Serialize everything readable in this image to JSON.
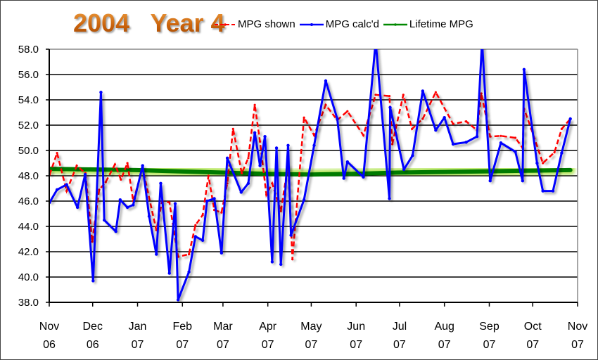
{
  "chart_data": {
    "type": "line",
    "title": "2004   Year 4",
    "xlabel": "",
    "ylabel": "",
    "ylim": [
      38.0,
      58.0
    ],
    "yticks": [
      "38.0",
      "40.0",
      "42.0",
      "44.0",
      "46.0",
      "48.0",
      "50.0",
      "52.0",
      "54.0",
      "56.0",
      "58.0"
    ],
    "x_unit": "days since Nov 1 2006",
    "xlim": [
      0,
      365
    ],
    "xticks": [
      {
        "day": 0,
        "line1": "Nov",
        "line2": "06"
      },
      {
        "day": 30,
        "line1": "Dec",
        "line2": "06"
      },
      {
        "day": 61,
        "line1": "Jan",
        "line2": "07"
      },
      {
        "day": 92,
        "line1": "Feb",
        "line2": "07"
      },
      {
        "day": 120,
        "line1": "Mar",
        "line2": "07"
      },
      {
        "day": 151,
        "line1": "Apr",
        "line2": "07"
      },
      {
        "day": 181,
        "line1": "May",
        "line2": "07"
      },
      {
        "day": 212,
        "line1": "Jun",
        "line2": "07"
      },
      {
        "day": 242,
        "line1": "Jul",
        "line2": "07"
      },
      {
        "day": 273,
        "line1": "Aug",
        "line2": "07"
      },
      {
        "day": 304,
        "line1": "Sep",
        "line2": "07"
      },
      {
        "day": 334,
        "line1": "Oct",
        "line2": "07"
      },
      {
        "day": 365,
        "line1": "Nov",
        "line2": "07"
      }
    ],
    "grid": true,
    "legend_position": "top-right",
    "series": [
      {
        "name": "MPG shown",
        "color": "#ff0000",
        "style": "dashed",
        "x": [
          0.3,
          5.4,
          12,
          19,
          25,
          29.7,
          34.5,
          39,
          45.4,
          49.5,
          54,
          58,
          64.5,
          74,
          78,
          83,
          89,
          96.5,
          101,
          106,
          110,
          114,
          119,
          123,
          127,
          133,
          137.5,
          142,
          145.6,
          150,
          154,
          160,
          165,
          168,
          176,
          183,
          191,
          199,
          206,
          217,
          225.5,
          235,
          237,
          244.6,
          250.6,
          258,
          267,
          279,
          288,
          295.5,
          298.5,
          304.6,
          312,
          322,
          327,
          328,
          333,
          341,
          349,
          354,
          360
        ],
        "y": [
          48.1,
          49.8,
          46.8,
          48.8,
          48.2,
          42.8,
          46.9,
          47.5,
          48.9,
          47.7,
          49.0,
          46.0,
          48.6,
          43.7,
          46.0,
          45.9,
          41.6,
          41.8,
          44.1,
          44.9,
          48.0,
          45.3,
          45.1,
          47.4,
          51.7,
          48.2,
          49.4,
          53.6,
          50.7,
          46.5,
          47.4,
          45.2,
          48.9,
          41.4,
          52.6,
          51.2,
          53.6,
          52.4,
          53.1,
          51.2,
          54.4,
          54.3,
          50.5,
          54.4,
          51.7,
          52.5,
          54.6,
          52.1,
          52.3,
          51.6,
          54.5,
          51.1,
          51.15,
          51.0,
          50.2,
          53.3,
          51.7,
          49.0,
          49.85,
          51.7,
          52.5
        ]
      },
      {
        "name": "MPG calc'd",
        "color": "#0000ff",
        "style": "solid",
        "x": [
          0.3,
          5.4,
          12,
          19.5,
          24.8,
          30.3,
          35.7,
          38,
          46,
          49,
          54,
          58,
          64.5,
          69,
          74,
          77,
          83,
          87,
          89,
          96.5,
          101,
          106,
          109,
          114,
          119,
          123,
          132.6,
          137.5,
          142,
          145.6,
          149,
          154,
          157,
          160,
          165,
          167,
          176,
          183,
          191,
          199,
          203.5,
          206,
          217,
          225.5,
          235,
          235.5,
          245,
          251,
          258,
          267,
          273,
          279,
          288,
          295.5,
          299,
          304.6,
          312,
          322,
          327,
          328,
          337,
          341,
          348,
          354,
          360
        ],
        "y": [
          45.9,
          46.9,
          47.3,
          45.5,
          48.1,
          39.7,
          54.6,
          44.5,
          43.6,
          46.1,
          45.5,
          45.7,
          48.8,
          44.8,
          41.8,
          47.4,
          40.3,
          45.8,
          38.2,
          40.4,
          43.2,
          42.9,
          46.0,
          46.2,
          41.9,
          49.4,
          46.7,
          47.4,
          51.4,
          48.8,
          51.1,
          41.2,
          50.2,
          41.0,
          50.4,
          43.3,
          46.1,
          50.4,
          55.5,
          52.5,
          47.8,
          49.1,
          47.9,
          58.6,
          46.2,
          53.4,
          48.5,
          49.6,
          54.7,
          51.6,
          52.6,
          50.5,
          50.65,
          51.1,
          58.6,
          47.6,
          50.6,
          49.9,
          47.6,
          56.4,
          49.0,
          46.8,
          46.8,
          49.8,
          52.5
        ]
      },
      {
        "name": "Lifetime MPG",
        "color": "#008000",
        "style": "solid",
        "x": [
          0,
          30,
          60,
          90,
          120,
          150,
          180,
          210,
          240,
          270,
          300,
          330,
          360
        ],
        "y": [
          48.55,
          48.5,
          48.45,
          48.35,
          48.25,
          48.15,
          48.1,
          48.15,
          48.25,
          48.3,
          48.35,
          48.4,
          48.45
        ]
      }
    ]
  }
}
